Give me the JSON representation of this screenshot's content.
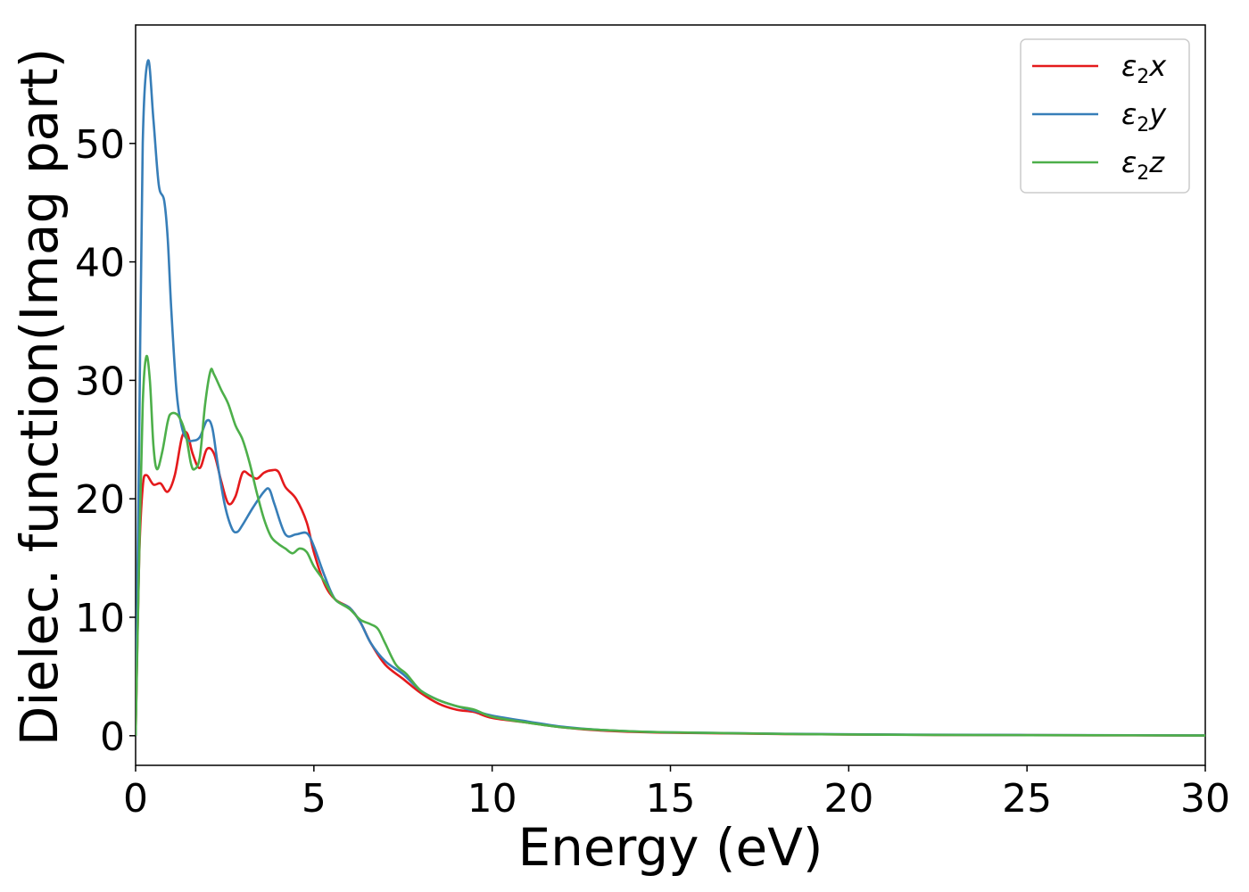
{
  "chart_data": {
    "type": "line",
    "title": "",
    "xlabel": "Energy (eV)",
    "ylabel": "Dielec. function(Imag part)",
    "xlim": [
      0,
      30
    ],
    "ylim": [
      -2.5,
      60
    ],
    "xticks": [
      0,
      5,
      10,
      15,
      20,
      25,
      30
    ],
    "xtick_labels": [
      "0",
      "5",
      "10",
      "15",
      "20",
      "25",
      "30"
    ],
    "yticks": [
      0,
      10,
      20,
      30,
      40,
      50
    ],
    "ytick_labels": [
      "0",
      "10",
      "20",
      "30",
      "40",
      "50"
    ],
    "grid": false,
    "legend_position": "top-right",
    "series": [
      {
        "name": "ε2x",
        "legend_main": "ε",
        "legend_sub": "2",
        "legend_var": "x",
        "color": "#e41a1c",
        "points": [
          [
            0,
            0
          ],
          [
            0.1,
            15
          ],
          [
            0.2,
            21
          ],
          [
            0.3,
            22
          ],
          [
            0.5,
            21.2
          ],
          [
            0.7,
            21.3
          ],
          [
            0.9,
            20.6
          ],
          [
            1.1,
            22
          ],
          [
            1.3,
            25.2
          ],
          [
            1.45,
            25.5
          ],
          [
            1.6,
            23.8
          ],
          [
            1.8,
            22.6
          ],
          [
            2.0,
            24.2
          ],
          [
            2.2,
            23.8
          ],
          [
            2.4,
            21.5
          ],
          [
            2.6,
            19.6
          ],
          [
            2.8,
            20.2
          ],
          [
            3.0,
            22.2
          ],
          [
            3.2,
            22
          ],
          [
            3.4,
            21.7
          ],
          [
            3.6,
            22.2
          ],
          [
            3.8,
            22.4
          ],
          [
            4.0,
            22.3
          ],
          [
            4.2,
            21
          ],
          [
            4.5,
            20
          ],
          [
            4.8,
            18
          ],
          [
            5.0,
            15.5
          ],
          [
            5.3,
            12.8
          ],
          [
            5.6,
            11.5
          ],
          [
            6.0,
            10.8
          ],
          [
            6.3,
            9.6
          ],
          [
            6.6,
            7.8
          ],
          [
            7.0,
            6
          ],
          [
            7.5,
            4.8
          ],
          [
            8.0,
            3.6
          ],
          [
            8.5,
            2.7
          ],
          [
            9.0,
            2.2
          ],
          [
            9.5,
            2.0
          ],
          [
            10.0,
            1.5
          ],
          [
            11,
            1.1
          ],
          [
            12,
            0.7
          ],
          [
            13,
            0.45
          ],
          [
            15,
            0.25
          ],
          [
            20,
            0.1
          ],
          [
            25,
            0.05
          ],
          [
            30,
            0.02
          ]
        ]
      },
      {
        "name": "ε2y",
        "legend_main": "ε",
        "legend_sub": "2",
        "legend_var": "y",
        "color": "#377eb8",
        "points": [
          [
            0,
            0
          ],
          [
            0.1,
            25
          ],
          [
            0.2,
            50
          ],
          [
            0.35,
            57
          ],
          [
            0.5,
            52
          ],
          [
            0.65,
            46.5
          ],
          [
            0.8,
            45.2
          ],
          [
            0.9,
            42
          ],
          [
            1.0,
            36
          ],
          [
            1.15,
            29
          ],
          [
            1.3,
            26
          ],
          [
            1.45,
            25
          ],
          [
            1.6,
            24.9
          ],
          [
            1.8,
            25.2
          ],
          [
            2.0,
            26.6
          ],
          [
            2.15,
            26
          ],
          [
            2.3,
            23
          ],
          [
            2.5,
            19.5
          ],
          [
            2.7,
            17.5
          ],
          [
            2.85,
            17.2
          ],
          [
            3.0,
            17.8
          ],
          [
            3.3,
            19.3
          ],
          [
            3.6,
            20.6
          ],
          [
            3.75,
            20.8
          ],
          [
            3.9,
            19.5
          ],
          [
            4.2,
            17
          ],
          [
            4.5,
            17
          ],
          [
            4.8,
            17.1
          ],
          [
            5.0,
            16
          ],
          [
            5.3,
            13.5
          ],
          [
            5.6,
            11.5
          ],
          [
            6.0,
            10.8
          ],
          [
            6.3,
            9.6
          ],
          [
            6.6,
            7.8
          ],
          [
            7.0,
            6.3
          ],
          [
            7.5,
            5.2
          ],
          [
            8.0,
            3.8
          ],
          [
            8.5,
            3
          ],
          [
            9.0,
            2.5
          ],
          [
            9.5,
            2.1
          ],
          [
            10.0,
            1.7
          ],
          [
            11,
            1.2
          ],
          [
            12,
            0.75
          ],
          [
            13,
            0.5
          ],
          [
            15,
            0.28
          ],
          [
            20,
            0.12
          ],
          [
            25,
            0.06
          ],
          [
            30,
            0.03
          ]
        ]
      },
      {
        "name": "ε2z",
        "legend_main": "ε",
        "legend_sub": "2",
        "legend_var": "z",
        "color": "#4daf4a",
        "points": [
          [
            0,
            0
          ],
          [
            0.1,
            15
          ],
          [
            0.2,
            28
          ],
          [
            0.3,
            32
          ],
          [
            0.4,
            30
          ],
          [
            0.5,
            24.5
          ],
          [
            0.6,
            22.5
          ],
          [
            0.75,
            24
          ],
          [
            0.9,
            26.5
          ],
          [
            1.0,
            27.2
          ],
          [
            1.2,
            27
          ],
          [
            1.4,
            25.5
          ],
          [
            1.55,
            23
          ],
          [
            1.65,
            22.5
          ],
          [
            1.8,
            23.5
          ],
          [
            1.95,
            28
          ],
          [
            2.1,
            30.8
          ],
          [
            2.2,
            30.5
          ],
          [
            2.4,
            29.2
          ],
          [
            2.6,
            28
          ],
          [
            2.8,
            26.2
          ],
          [
            3.0,
            25
          ],
          [
            3.2,
            23
          ],
          [
            3.4,
            20.5
          ],
          [
            3.6,
            18.3
          ],
          [
            3.8,
            16.8
          ],
          [
            4.0,
            16.2
          ],
          [
            4.2,
            15.8
          ],
          [
            4.4,
            15.4
          ],
          [
            4.6,
            15.8
          ],
          [
            4.8,
            15.5
          ],
          [
            5.0,
            14.3
          ],
          [
            5.3,
            13
          ],
          [
            5.6,
            11.5
          ],
          [
            6.0,
            10.7
          ],
          [
            6.3,
            9.8
          ],
          [
            6.6,
            9.4
          ],
          [
            6.8,
            9
          ],
          [
            7.0,
            7.8
          ],
          [
            7.3,
            6
          ],
          [
            7.6,
            5.2
          ],
          [
            8.0,
            3.8
          ],
          [
            8.5,
            3
          ],
          [
            9.0,
            2.5
          ],
          [
            9.5,
            2.2
          ],
          [
            10.0,
            1.6
          ],
          [
            11,
            1.1
          ],
          [
            12,
            0.7
          ],
          [
            13,
            0.5
          ],
          [
            15,
            0.28
          ],
          [
            20,
            0.1
          ],
          [
            25,
            0.05
          ],
          [
            30,
            0.02
          ]
        ]
      }
    ]
  }
}
